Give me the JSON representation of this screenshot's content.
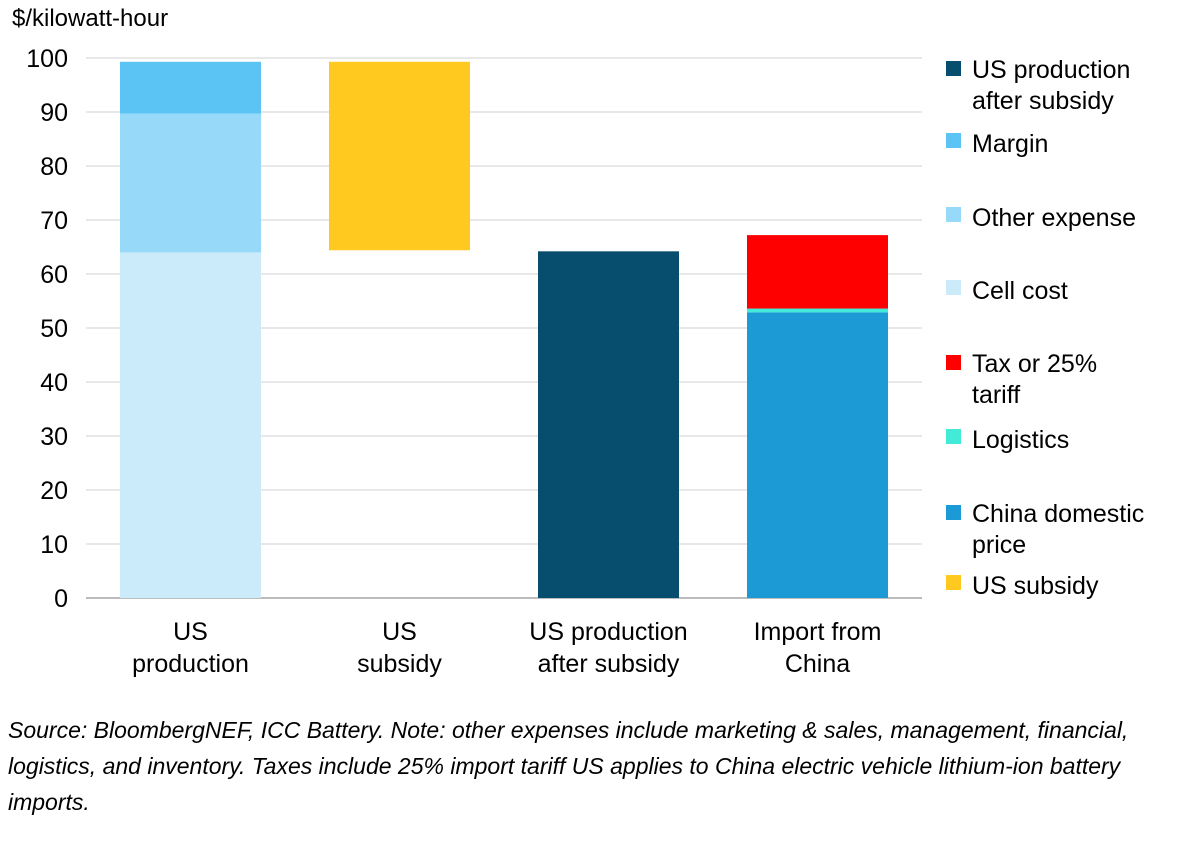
{
  "chart_data": {
    "type": "bar",
    "stacked": true,
    "waterfall": true,
    "ylabel": "$/kilowatt-hour",
    "xlabel": "",
    "ylim": [
      0,
      100
    ],
    "yticks": [
      "0",
      "10",
      "20",
      "30",
      "40",
      "50",
      "60",
      "70",
      "80",
      "90",
      "100"
    ],
    "grid": true,
    "legend_position": "right",
    "categories": [
      [
        "US",
        "production"
      ],
      [
        "US",
        "subsidy"
      ],
      [
        "US production",
        "after subsidy"
      ],
      [
        "Import from",
        "China"
      ]
    ],
    "series": [
      {
        "name": "US production after subsidy",
        "legend": [
          "US production",
          "after subsidy"
        ],
        "color": "#074d6d",
        "values": [
          0,
          0,
          64.2,
          0
        ]
      },
      {
        "name": "Margin",
        "legend": [
          "Margin"
        ],
        "color": "#5bc4f5",
        "values": [
          9.6,
          0,
          0,
          0
        ]
      },
      {
        "name": "Other expense",
        "legend": [
          "Other expense"
        ],
        "color": "#96d9f8",
        "values": [
          25.7,
          0,
          0,
          0
        ]
      },
      {
        "name": "Cell cost",
        "legend": [
          "Cell cost"
        ],
        "color": "#cbebfb",
        "values": [
          64.0,
          0,
          0,
          0
        ]
      },
      {
        "name": "Tax or 25% tariff",
        "legend": [
          "Tax or 25%",
          "tariff"
        ],
        "color": "#ff0000",
        "values": [
          0,
          0,
          0,
          13.6
        ]
      },
      {
        "name": "Logistics",
        "legend": [
          "Logistics"
        ],
        "color": "#41ebd8",
        "values": [
          0,
          0,
          0,
          0.7
        ]
      },
      {
        "name": "China domestic price",
        "legend": [
          "China domestic",
          "price"
        ],
        "color": "#1b9ad6",
        "values": [
          0,
          0,
          0,
          52.9
        ]
      },
      {
        "name": "US subsidy",
        "legend": [
          "US subsidy"
        ],
        "color": "#ffc91f",
        "values": [
          0,
          34.9,
          0,
          0
        ]
      }
    ],
    "waterfall_base": [
      0,
      64.4,
      0,
      0
    ],
    "stack_order": [
      "Cell cost",
      "Other expense",
      "Margin",
      "US subsidy",
      "US production after subsidy",
      "China domestic price",
      "Logistics",
      "Tax or 25% tariff"
    ]
  },
  "note": "Source: BloombergNEF, ICC Battery. Note: other expenses include marketing & sales, management, financial, logistics, and inventory. Taxes include 25% import tariff US applies to China electric vehicle lithium-ion battery imports."
}
